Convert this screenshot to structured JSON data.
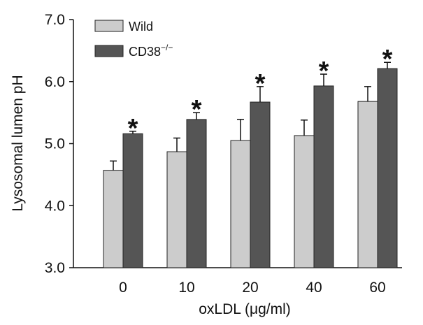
{
  "chart_data": {
    "type": "bar",
    "xlabel": "oxLDL (μg/ml)",
    "ylabel": "Lysosomal lumen pH",
    "ylim": [
      3.0,
      7.0
    ],
    "yticks": [
      "3.0",
      "4.0",
      "5.0",
      "6.0",
      "7.0"
    ],
    "categories": [
      "0",
      "10",
      "20",
      "40",
      "60"
    ],
    "series": [
      {
        "name": "Wild",
        "values": [
          4.57,
          4.87,
          5.05,
          5.13,
          5.68
        ],
        "errors": [
          0.15,
          0.22,
          0.34,
          0.25,
          0.24
        ],
        "color": "#cccccc"
      },
      {
        "name": "CD38",
        "name_superscript": "−/−",
        "values": [
          5.16,
          5.39,
          5.67,
          5.93,
          6.21
        ],
        "errors": [
          0.04,
          0.11,
          0.25,
          0.19,
          0.1
        ],
        "color": "#555555"
      }
    ],
    "annotations": [
      "*",
      "*",
      "*",
      "*",
      "*"
    ],
    "grid": false,
    "legend_position": "top-left"
  }
}
